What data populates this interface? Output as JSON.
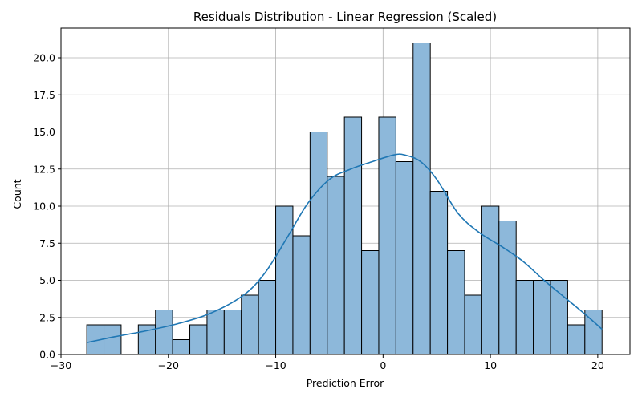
{
  "chart_data": {
    "type": "bar",
    "subtype": "histogram-with-kde",
    "title": "Residuals Distribution - Linear Regression (Scaled)",
    "xlabel": "Prediction Error",
    "ylabel": "Count",
    "xlim": [
      -30,
      23
    ],
    "ylim": [
      0,
      22
    ],
    "xticks": [
      -30,
      -20,
      -10,
      0,
      10,
      20
    ],
    "xtick_labels": [
      "−30",
      "−20",
      "−10",
      "0",
      "10",
      "20"
    ],
    "yticks": [
      0,
      2.5,
      5,
      7.5,
      10,
      12.5,
      15,
      17.5,
      20
    ],
    "ytick_labels": [
      "0.0",
      "2.5",
      "5.0",
      "7.5",
      "10.0",
      "12.5",
      "15.0",
      "17.5",
      "20.0"
    ],
    "grid": true,
    "bar_color": "#8db8da",
    "bar_edge_color": "#000000",
    "kde_color": "#1f77b4",
    "bins": [
      {
        "x0": -27.6,
        "x1": -26.0,
        "count": 2
      },
      {
        "x0": -26.0,
        "x1": -24.4,
        "count": 2
      },
      {
        "x0": -24.4,
        "x1": -22.8,
        "count": 0
      },
      {
        "x0": -22.8,
        "x1": -21.2,
        "count": 2
      },
      {
        "x0": -21.2,
        "x1": -19.6,
        "count": 3
      },
      {
        "x0": -19.6,
        "x1": -18.0,
        "count": 1
      },
      {
        "x0": -18.0,
        "x1": -16.4,
        "count": 2
      },
      {
        "x0": -16.4,
        "x1": -14.8,
        "count": 3
      },
      {
        "x0": -14.8,
        "x1": -13.2,
        "count": 3
      },
      {
        "x0": -13.2,
        "x1": -11.6,
        "count": 4
      },
      {
        "x0": -11.6,
        "x1": -10.0,
        "count": 5
      },
      {
        "x0": -10.0,
        "x1": -8.4,
        "count": 10
      },
      {
        "x0": -8.4,
        "x1": -6.8,
        "count": 8
      },
      {
        "x0": -6.8,
        "x1": -5.2,
        "count": 15
      },
      {
        "x0": -5.2,
        "x1": -3.6,
        "count": 12
      },
      {
        "x0": -3.6,
        "x1": -2.0,
        "count": 16
      },
      {
        "x0": -2.0,
        "x1": -0.4,
        "count": 7
      },
      {
        "x0": -0.4,
        "x1": 1.2,
        "count": 16
      },
      {
        "x0": 1.2,
        "x1": 2.8,
        "count": 13
      },
      {
        "x0": 2.8,
        "x1": 4.4,
        "count": 21
      },
      {
        "x0": 4.4,
        "x1": 6.0,
        "count": 11
      },
      {
        "x0": 6.0,
        "x1": 7.6,
        "count": 7
      },
      {
        "x0": 7.6,
        "x1": 9.2,
        "count": 4
      },
      {
        "x0": 9.2,
        "x1": 10.8,
        "count": 10
      },
      {
        "x0": 10.8,
        "x1": 12.4,
        "count": 9
      },
      {
        "x0": 12.4,
        "x1": 14.0,
        "count": 5
      },
      {
        "x0": 14.0,
        "x1": 15.6,
        "count": 5
      },
      {
        "x0": 15.6,
        "x1": 17.2,
        "count": 5
      },
      {
        "x0": 17.2,
        "x1": 18.8,
        "count": 2
      },
      {
        "x0": 18.8,
        "x1": 20.4,
        "count": 3
      }
    ],
    "kde": [
      {
        "x": -27.6,
        "y": 0.8
      },
      {
        "x": -25.0,
        "y": 1.2
      },
      {
        "x": -22.0,
        "y": 1.6
      },
      {
        "x": -19.0,
        "y": 2.1
      },
      {
        "x": -16.0,
        "y": 2.8
      },
      {
        "x": -13.0,
        "y": 4.0
      },
      {
        "x": -11.0,
        "y": 5.5
      },
      {
        "x": -9.0,
        "y": 7.8
      },
      {
        "x": -7.0,
        "y": 10.2
      },
      {
        "x": -5.0,
        "y": 11.8
      },
      {
        "x": -3.0,
        "y": 12.5
      },
      {
        "x": -1.0,
        "y": 13.0
      },
      {
        "x": 1.0,
        "y": 13.45
      },
      {
        "x": 2.0,
        "y": 13.45
      },
      {
        "x": 3.5,
        "y": 13.0
      },
      {
        "x": 5.0,
        "y": 11.8
      },
      {
        "x": 7.0,
        "y": 9.5
      },
      {
        "x": 9.0,
        "y": 8.2
      },
      {
        "x": 11.0,
        "y": 7.3
      },
      {
        "x": 13.0,
        "y": 6.3
      },
      {
        "x": 15.0,
        "y": 5.0
      },
      {
        "x": 17.0,
        "y": 3.8
      },
      {
        "x": 19.0,
        "y": 2.6
      },
      {
        "x": 20.4,
        "y": 1.7
      }
    ]
  }
}
